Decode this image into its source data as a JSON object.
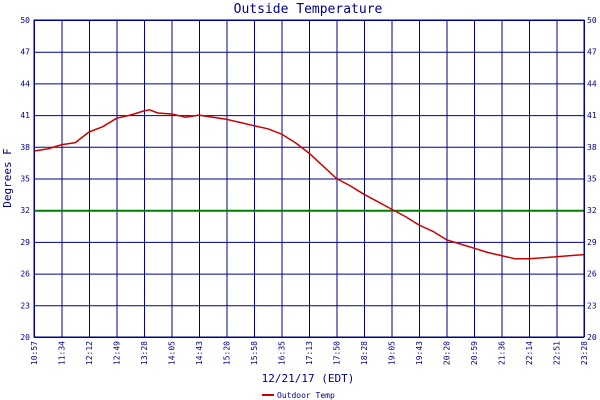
{
  "chart_data": {
    "type": "line",
    "title": "Outside Temperature",
    "xlabel": "12/21/17 (EDT)",
    "ylabel": "Degrees F",
    "ylim": [
      20,
      50
    ],
    "yticks": [
      20,
      23,
      26,
      29,
      32,
      35,
      38,
      41,
      44,
      47,
      50
    ],
    "xticks": [
      "10:57",
      "11:34",
      "12:12",
      "12:49",
      "13:28",
      "14:05",
      "14:43",
      "15:20",
      "15:58",
      "16:35",
      "17:13",
      "17:50",
      "18:28",
      "19:05",
      "19:43",
      "20:20",
      "20:59",
      "21:36",
      "22:14",
      "22:51",
      "23:28"
    ],
    "grid": true,
    "freezing_line": 32,
    "colors": {
      "series": "#cc0000",
      "grid": "#00008b",
      "freezing_line": "#008000",
      "text": "#00008b"
    },
    "legend_position": "bottom-left",
    "series": [
      {
        "name": "Outdoor Temp",
        "x": [
          0,
          0.5,
          1,
          1.5,
          2,
          2.5,
          3,
          3.5,
          4,
          4.2,
          4.5,
          5,
          5.5,
          6,
          6.5,
          7,
          7.5,
          8,
          8.5,
          9,
          9.5,
          10,
          10.5,
          11,
          11.5,
          12,
          12.5,
          13,
          13.5,
          14,
          14.5,
          15,
          15.5,
          16,
          16.5,
          17,
          17.5,
          18,
          18.5,
          19,
          19.5,
          20
        ],
        "values": [
          37.6,
          37.8,
          38.2,
          38.4,
          39.4,
          39.9,
          40.7,
          41.0,
          41.4,
          41.5,
          41.2,
          41.1,
          40.8,
          41.0,
          40.8,
          40.6,
          40.3,
          40.0,
          39.7,
          39.2,
          38.4,
          37.4,
          36.2,
          35.0,
          34.3,
          33.5,
          32.8,
          32.1,
          31.4,
          30.6,
          30.0,
          29.2,
          28.8,
          28.4,
          28.0,
          27.7,
          27.4,
          27.4,
          27.5,
          27.6,
          27.7,
          27.8
        ]
      }
    ]
  }
}
